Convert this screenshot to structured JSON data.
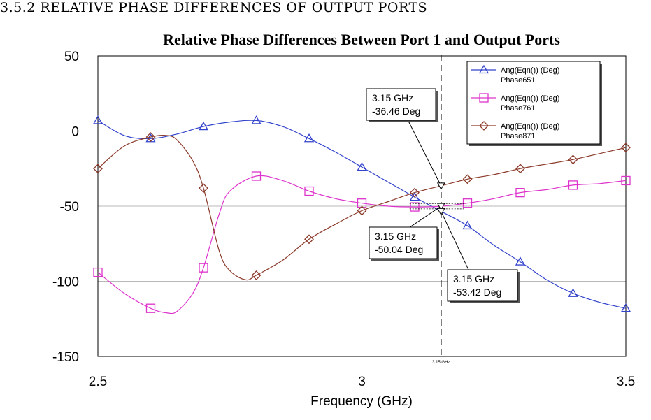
{
  "section_heading": "3.5.2 RELATIVE PHASE DIFFERENCES OF OUTPUT PORTS",
  "chart_data": {
    "type": "line",
    "title": "Relative Phase Differences Between Port 1 and Output Ports",
    "xlabel": "Frequency (GHz)",
    "ylabel": "",
    "xlim": [
      2.5,
      3.5
    ],
    "ylim": [
      -150,
      50
    ],
    "x_ticks": [
      "2.5",
      "3",
      "3.5"
    ],
    "y_ticks": [
      "50",
      "0",
      "-50",
      "-100",
      "-150"
    ],
    "grid": true,
    "legend_position": "top-right",
    "series": [
      {
        "name": "Ang(Eqn()) (Deg)",
        "name_line2": "Phase651",
        "color": "#3344cc",
        "marker": "triangle",
        "x": [
          2.5,
          2.55,
          2.6,
          2.65,
          2.7,
          2.75,
          2.8,
          2.85,
          2.9,
          2.95,
          3.0,
          3.05,
          3.1,
          3.15,
          3.2,
          3.25,
          3.3,
          3.35,
          3.4,
          3.45,
          3.5
        ],
        "values": [
          7,
          -3,
          -5,
          -2,
          3,
          6,
          7,
          3,
          -5,
          -14,
          -24,
          -34,
          -44,
          -53.42,
          -63,
          -76,
          -87,
          -99,
          -108,
          -114,
          -118
        ]
      },
      {
        "name": "Ang(Eqn()) (Deg)",
        "name_line2": "Phase761",
        "color": "#dd33cc",
        "marker": "square",
        "x": [
          2.5,
          2.55,
          2.6,
          2.63,
          2.65,
          2.68,
          2.7,
          2.73,
          2.75,
          2.8,
          2.85,
          2.9,
          2.95,
          3.0,
          3.05,
          3.1,
          3.15,
          3.2,
          3.25,
          3.3,
          3.35,
          3.4,
          3.45,
          3.5
        ],
        "values": [
          -94,
          -108,
          -118,
          -121,
          -120,
          -108,
          -91,
          -55,
          -40,
          -30,
          -33,
          -40,
          -45,
          -48,
          -50,
          -50.5,
          -50.04,
          -48,
          -45,
          -41,
          -39,
          -36,
          -35,
          -33
        ]
      },
      {
        "name": "Ang(Eqn()) (Deg)",
        "name_line2": "Phase871",
        "color": "#8b3a2a",
        "marker": "diamond",
        "x": [
          2.5,
          2.55,
          2.6,
          2.63,
          2.65,
          2.68,
          2.7,
          2.73,
          2.75,
          2.78,
          2.8,
          2.85,
          2.9,
          2.95,
          3.0,
          3.05,
          3.1,
          3.15,
          3.2,
          3.25,
          3.3,
          3.35,
          3.4,
          3.45,
          3.5
        ],
        "values": [
          -25,
          -10,
          -4,
          -3,
          -6,
          -20,
          -38,
          -80,
          -93,
          -99,
          -96,
          -86,
          -72,
          -62,
          -53,
          -47,
          -41,
          -36.46,
          -32,
          -29,
          -25,
          -22,
          -19,
          -15,
          -11
        ]
      }
    ],
    "marker_line_label": "3.15 GHz",
    "annotations": [
      {
        "line1": "3.15 GHz",
        "line2": "-36.46 Deg",
        "x": 3.15,
        "y": -36.46
      },
      {
        "line1": "3.15 GHz",
        "line2": "-50.04 Deg",
        "x": 3.15,
        "y": -50.04
      },
      {
        "line1": "3.15 GHz",
        "line2": "-53.42 Deg",
        "x": 3.15,
        "y": -53.42
      }
    ]
  }
}
